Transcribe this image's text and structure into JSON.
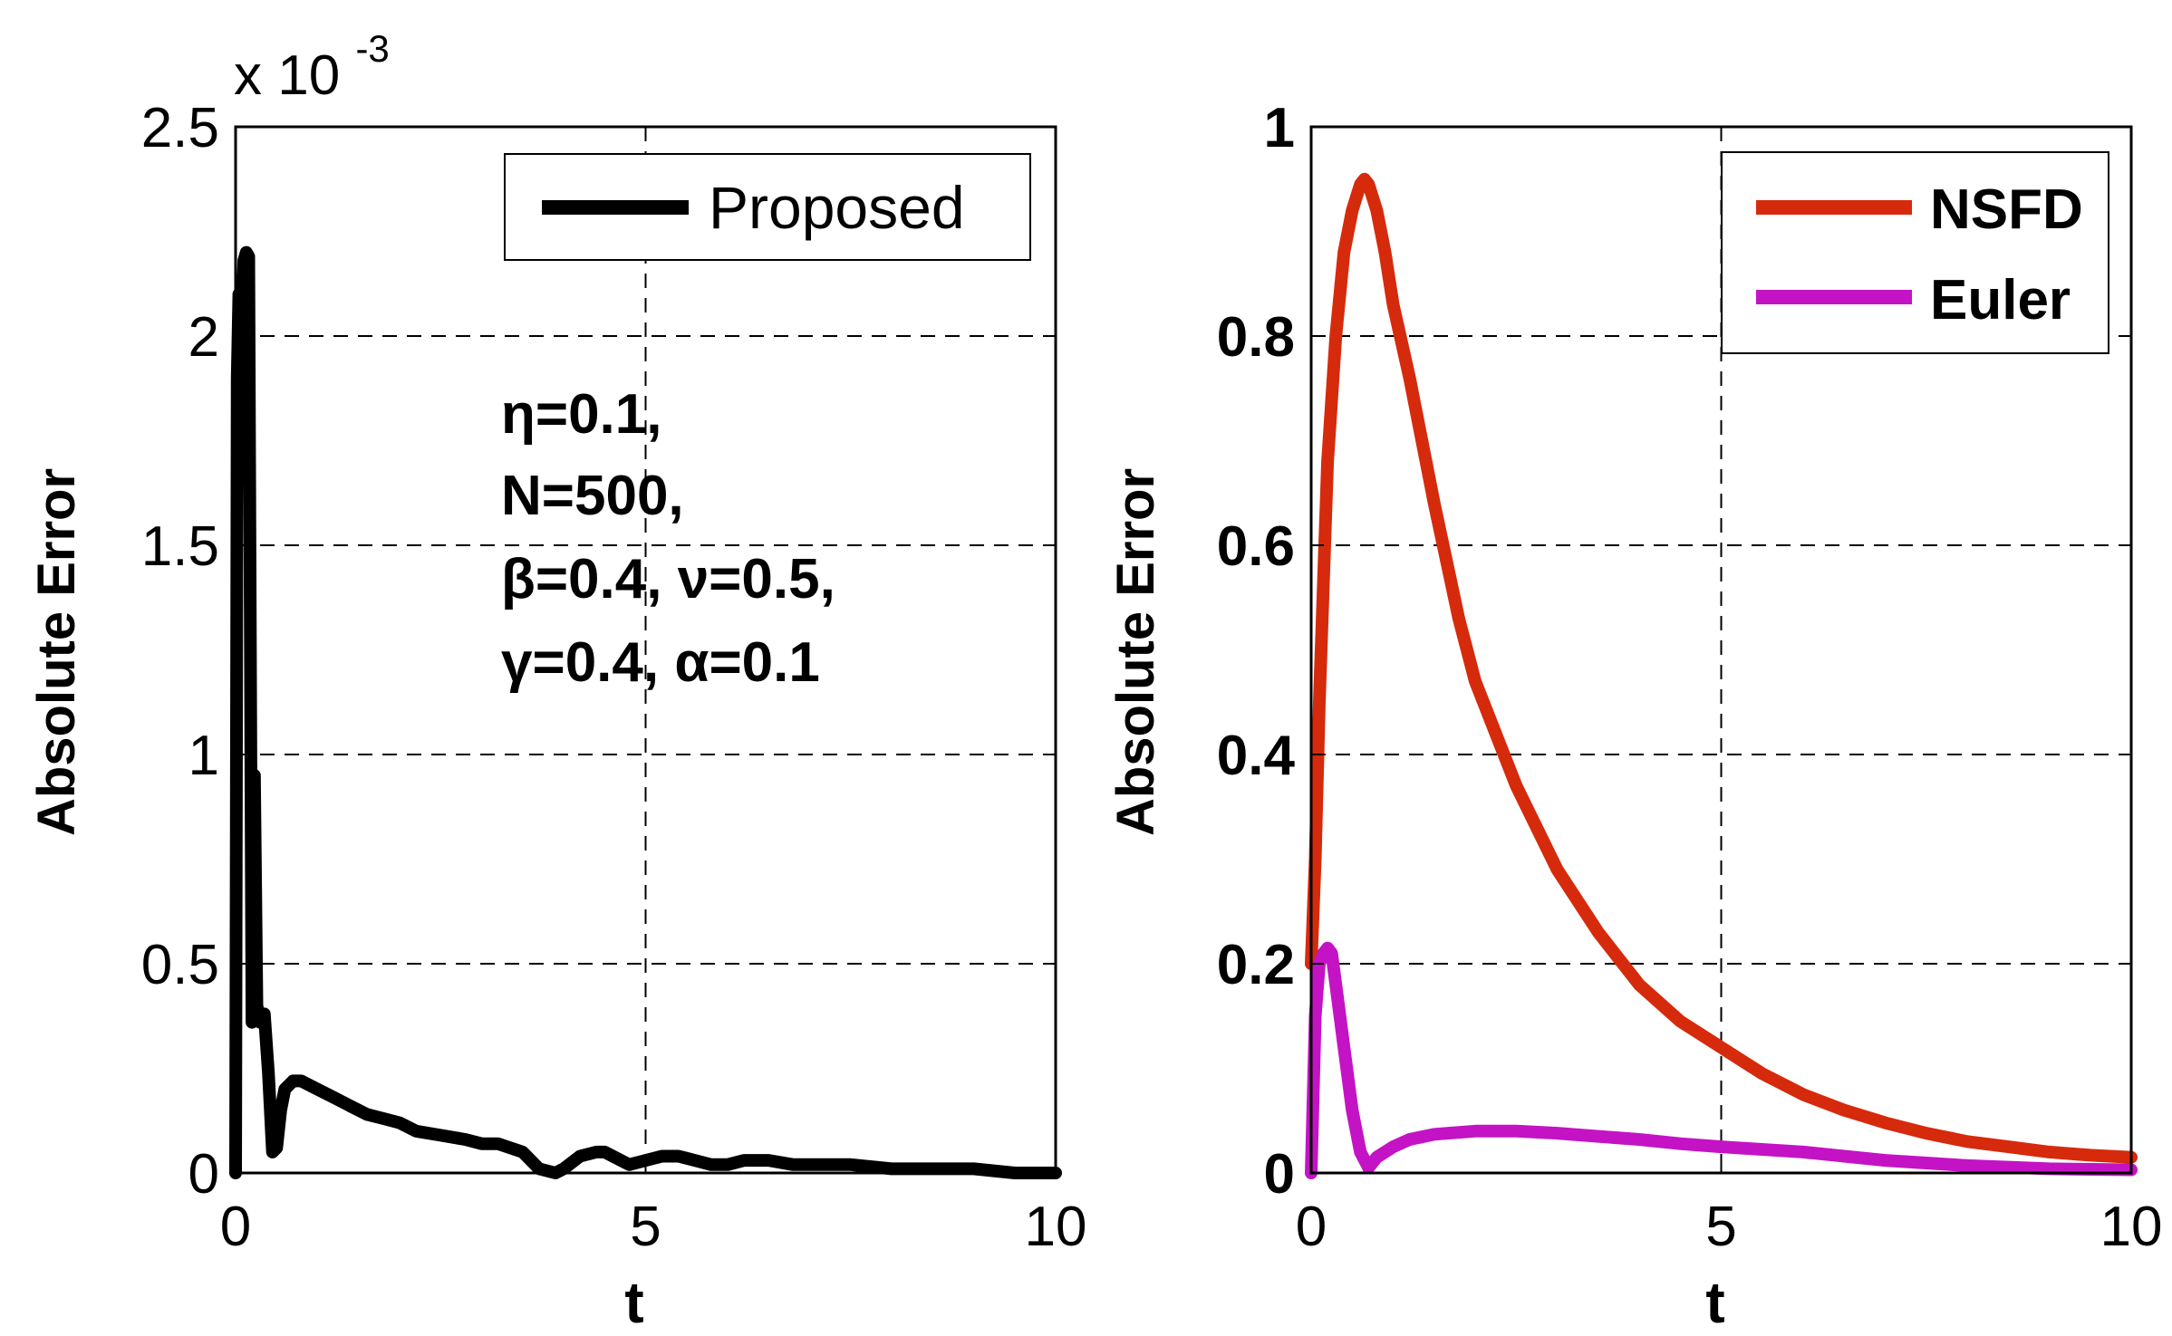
{
  "chart_data": [
    {
      "type": "line",
      "title": "",
      "xlabel": "t",
      "ylabel": "Absolute Error",
      "xlim": [
        0,
        10
      ],
      "ylim": [
        0,
        2.5
      ],
      "xticks": [
        0,
        5,
        10
      ],
      "xtick_labels": [
        "0",
        "5",
        "10"
      ],
      "yticks": [
        0,
        0.5,
        1,
        1.5,
        2,
        2.5
      ],
      "ytick_labels": [
        "0",
        "0.5",
        "1",
        "1.5",
        "2",
        "2.5"
      ],
      "y_multiplier_label": "x 10",
      "y_multiplier_exponent": "-3",
      "grid": true,
      "legend_position": "top-right",
      "annotation_lines": [
        "η=0.1,",
        "N=500,",
        "β=0.4, ν=0.5,",
        "γ=0.4, α=0.1"
      ],
      "series": [
        {
          "name": "Proposed",
          "color": "#000000",
          "x": [
            0,
            0.02,
            0.04,
            0.07,
            0.1,
            0.13,
            0.16,
            0.2,
            0.23,
            0.26,
            0.3,
            0.35,
            0.4,
            0.45,
            0.5,
            0.55,
            0.6,
            0.7,
            0.8,
            1.0,
            1.2,
            1.4,
            1.6,
            1.8,
            2.0,
            2.2,
            2.5,
            2.8,
            3.0,
            3.2,
            3.5,
            3.7,
            3.9,
            4.0,
            4.2,
            4.4,
            4.5,
            4.6,
            4.8,
            5.0,
            5.2,
            5.4,
            5.6,
            5.8,
            6.0,
            6.2,
            6.5,
            6.8,
            7.0,
            7.5,
            8.0,
            8.5,
            9.0,
            9.5,
            10.0
          ],
          "values": [
            0,
            1.9,
            2.1,
            2.0,
            2.18,
            2.2,
            2.19,
            0.36,
            0.95,
            0.4,
            0.36,
            0.38,
            0.24,
            0.05,
            0.06,
            0.15,
            0.2,
            0.22,
            0.22,
            0.2,
            0.18,
            0.16,
            0.14,
            0.13,
            0.12,
            0.1,
            0.09,
            0.08,
            0.07,
            0.07,
            0.05,
            0.01,
            0.0,
            0.01,
            0.04,
            0.05,
            0.05,
            0.04,
            0.02,
            0.03,
            0.04,
            0.04,
            0.03,
            0.02,
            0.02,
            0.03,
            0.03,
            0.02,
            0.02,
            0.02,
            0.01,
            0.01,
            0.01,
            0.0,
            0.0
          ]
        }
      ]
    },
    {
      "type": "line",
      "title": "",
      "xlabel": "t",
      "ylabel": "Absolute Error",
      "xlim": [
        0,
        10
      ],
      "ylim": [
        0,
        1
      ],
      "xticks": [
        0,
        5,
        10
      ],
      "xtick_labels": [
        "0",
        "5",
        "10"
      ],
      "yticks": [
        0,
        0.2,
        0.4,
        0.6,
        0.8,
        1
      ],
      "ytick_labels": [
        "0",
        "0.2",
        "0.4",
        "0.6",
        "0.8",
        "1"
      ],
      "grid": true,
      "legend_position": "top-right",
      "series": [
        {
          "name": "NSFD",
          "color": "#d62a0c",
          "x": [
            0,
            0.05,
            0.1,
            0.2,
            0.3,
            0.4,
            0.5,
            0.6,
            0.65,
            0.7,
            0.8,
            0.9,
            1.0,
            1.2,
            1.5,
            1.8,
            2.0,
            2.5,
            3.0,
            3.5,
            4.0,
            4.5,
            5.0,
            5.5,
            6.0,
            6.5,
            7.0,
            7.5,
            8.0,
            8.5,
            9.0,
            9.5,
            10.0
          ],
          "values": [
            0.2,
            0.3,
            0.45,
            0.68,
            0.8,
            0.88,
            0.92,
            0.945,
            0.95,
            0.945,
            0.92,
            0.88,
            0.83,
            0.76,
            0.64,
            0.53,
            0.47,
            0.37,
            0.29,
            0.23,
            0.18,
            0.145,
            0.12,
            0.095,
            0.075,
            0.06,
            0.048,
            0.038,
            0.03,
            0.025,
            0.02,
            0.017,
            0.015
          ]
        },
        {
          "name": "Euler",
          "color": "#c413c4",
          "x": [
            0,
            0.05,
            0.1,
            0.15,
            0.2,
            0.25,
            0.3,
            0.4,
            0.5,
            0.6,
            0.7,
            0.8,
            1.0,
            1.2,
            1.5,
            2.0,
            2.5,
            3.0,
            3.5,
            4.0,
            4.5,
            5.0,
            6.0,
            7.0,
            8.0,
            9.0,
            10.0
          ],
          "values": [
            0.0,
            0.15,
            0.2,
            0.21,
            0.215,
            0.21,
            0.18,
            0.12,
            0.06,
            0.02,
            0.005,
            0.015,
            0.025,
            0.032,
            0.037,
            0.04,
            0.04,
            0.038,
            0.035,
            0.032,
            0.028,
            0.025,
            0.02,
            0.012,
            0.007,
            0.004,
            0.003
          ]
        }
      ]
    }
  ]
}
